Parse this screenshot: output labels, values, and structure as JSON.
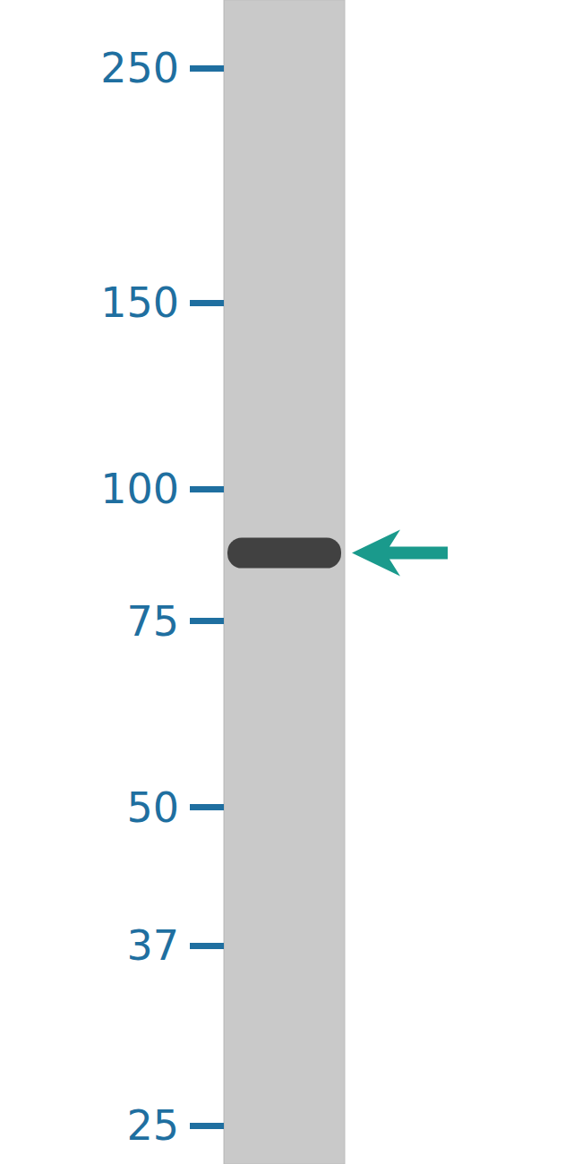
{
  "chart_data": {
    "type": "blot",
    "log": "y",
    "ylim": [
      23,
      290
    ],
    "yticks": [
      25,
      37,
      50,
      75,
      100,
      150,
      250
    ],
    "values": [
      87
    ],
    "color": "#3a3a3a"
  }
}
